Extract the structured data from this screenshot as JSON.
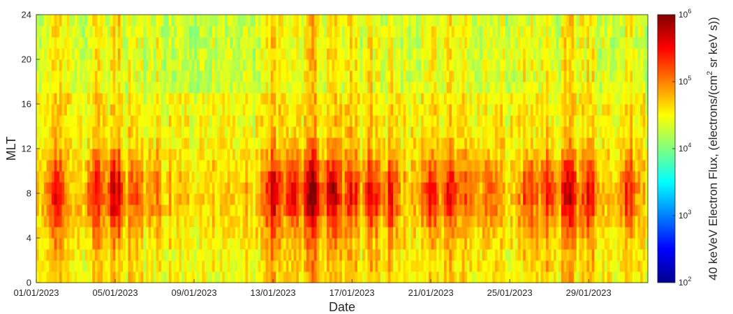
{
  "chart_data": {
    "type": "heatmap",
    "title": "",
    "xlabel": "Date",
    "ylabel": "MLT",
    "x_ticks": [
      "01/01/2023",
      "05/01/2023",
      "09/01/2023",
      "13/01/2023",
      "17/01/2023",
      "21/01/2023",
      "25/01/2023",
      "29/01/2023"
    ],
    "y_ticks": [
      "0",
      "4",
      "8",
      "12",
      "16",
      "20",
      "24"
    ],
    "xlim": [
      "01/01/2023",
      "01/02/2023"
    ],
    "ylim": [
      0,
      24
    ],
    "grid": false,
    "colorbar": {
      "label_prefix": "40 keVeV Electron Flux, (electrons/(cm",
      "label_sup": "2",
      "label_suffix": " sr keV s))",
      "colormap": "jet",
      "scale": "log",
      "range": [
        100,
        1000000
      ],
      "ticks": [
        {
          "base": "10",
          "exp": "2"
        },
        {
          "base": "10",
          "exp": "3"
        },
        {
          "base": "10",
          "exp": "4"
        },
        {
          "base": "10",
          "exp": "5"
        },
        {
          "base": "10",
          "exp": "6"
        }
      ]
    },
    "activity_events": [
      {
        "date": "02/01/2023",
        "intensity": 0.55
      },
      {
        "date": "04/01/2023",
        "intensity": 0.55
      },
      {
        "date": "05/01/2023",
        "intensity": 0.85
      },
      {
        "date": "06/01/2023",
        "intensity": 0.4
      },
      {
        "date": "07/01/2023",
        "intensity": 0.3
      },
      {
        "date": "13/01/2023",
        "intensity": 0.75
      },
      {
        "date": "14/01/2023",
        "intensity": 0.7
      },
      {
        "date": "15/01/2023",
        "intensity": 1.0
      },
      {
        "date": "16/01/2023",
        "intensity": 0.9
      },
      {
        "date": "17/01/2023",
        "intensity": 0.55
      },
      {
        "date": "18/01/2023",
        "intensity": 0.6
      },
      {
        "date": "19/01/2023",
        "intensity": 0.5
      },
      {
        "date": "21/01/2023",
        "intensity": 0.6
      },
      {
        "date": "22/01/2023",
        "intensity": 0.6
      },
      {
        "date": "23/01/2023",
        "intensity": 0.45
      },
      {
        "date": "24/01/2023",
        "intensity": 0.4
      },
      {
        "date": "26/01/2023",
        "intensity": 0.5
      },
      {
        "date": "27/01/2023",
        "intensity": 0.55
      },
      {
        "date": "28/01/2023",
        "intensity": 0.75
      },
      {
        "date": "29/01/2023",
        "intensity": 0.6
      },
      {
        "date": "31/01/2023",
        "intensity": 0.5
      }
    ]
  }
}
